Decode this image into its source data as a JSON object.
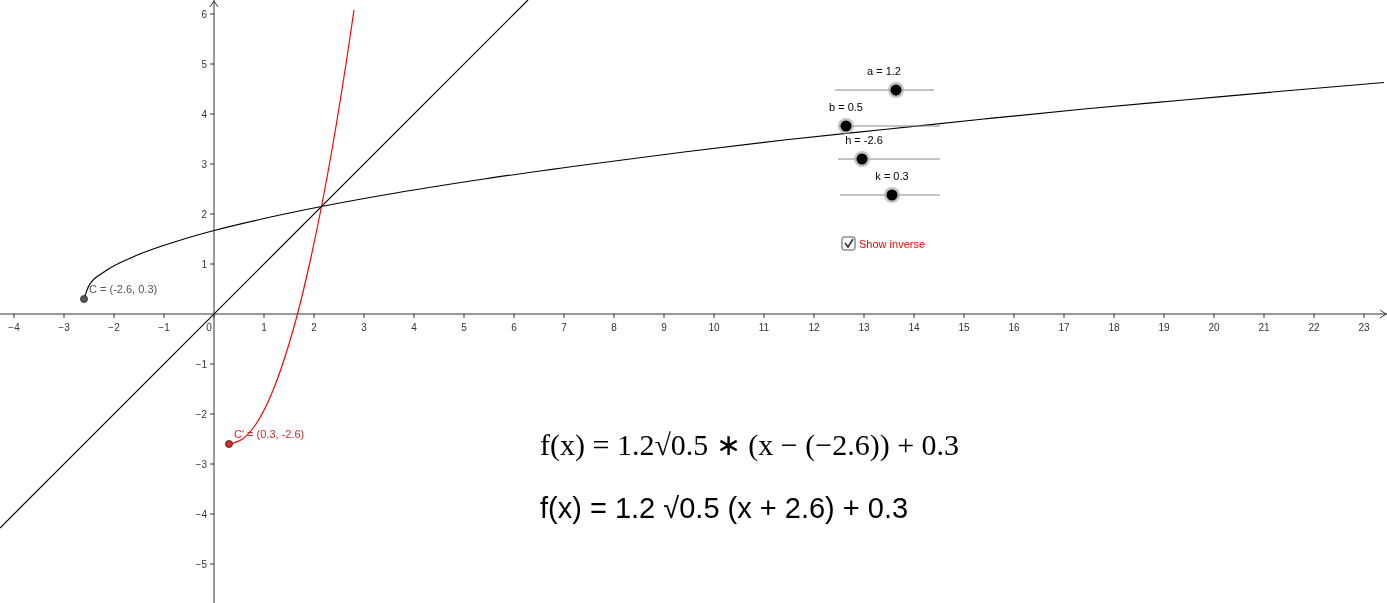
{
  "chart_data": {
    "type": "line",
    "xlim": [
      -4.28,
      23.46
    ],
    "ylim": [
      -5.78,
      6.28
    ],
    "xticks": [
      -4,
      -3,
      -2,
      -1,
      0,
      1,
      2,
      3,
      4,
      5,
      6,
      7,
      8,
      9,
      10,
      11,
      12,
      13,
      14,
      15,
      16,
      17,
      18,
      19,
      20,
      21,
      22,
      23
    ],
    "yticks": [
      -5,
      -4,
      -3,
      -2,
      -1,
      1,
      2,
      3,
      4,
      5,
      6
    ],
    "grid": false,
    "marker": "none",
    "line_style": "solid",
    "series": [
      {
        "color": "#000000",
        "x": [
          -2.6,
          -2.5,
          -2.2,
          -1.6,
          -0.6,
          0,
          1,
          2.2,
          3.4,
          5.4,
          7.4,
          9.4,
          11.4,
          13.4,
          15.4,
          17.4,
          19.4,
          21.4,
          23.4
        ],
        "values": [
          0.3,
          0.57,
          0.84,
          1.15,
          1.5,
          1.67,
          1.91,
          2.16,
          2.38,
          2.7,
          2.98,
          3.24,
          3.48,
          3.69,
          3.9,
          4.1,
          4.28,
          4.46,
          4.63
        ]
      },
      {
        "color": "#ff0000",
        "x": [
          0.3,
          0.57,
          0.84,
          1.15,
          1.5,
          1.67,
          1.91,
          2.16,
          2.38,
          2.7,
          2.8
        ],
        "values": [
          -2.6,
          -2.5,
          -2.2,
          -1.6,
          -0.6,
          0,
          1,
          2.2,
          3.4,
          5.4,
          6.08
        ]
      },
      {
        "color": "#000000",
        "x": [
          -4.28,
          6.28
        ],
        "values": [
          -4.28,
          6.28
        ]
      },
      {
        "type": "scatter",
        "marker": "circle",
        "color": "#555555",
        "x": [
          -2.6
        ],
        "values": [
          0.3
        ]
      },
      {
        "type": "scatter",
        "marker": "circle",
        "color": "#d42a2a",
        "x": [
          0.3
        ],
        "values": [
          -2.6
        ]
      }
    ],
    "annotations": [
      "a = 1.2",
      "b = 0.5",
      "h = -2.6",
      "k = 0.3",
      "Show inverse",
      "f(x) = 1.2√0.5 ∗ (x − (−2.6)) + 0.3",
      "f(x) = 1.2 √0.5 (x + 2.6) + 0.3",
      {
        "text": "C = (-2.6, 0.3)",
        "x": -2.6,
        "y": 0.3
      },
      {
        "text": "C' = (0.3, -2.6)",
        "x": 0.3,
        "y": -2.6
      }
    ]
  }
}
